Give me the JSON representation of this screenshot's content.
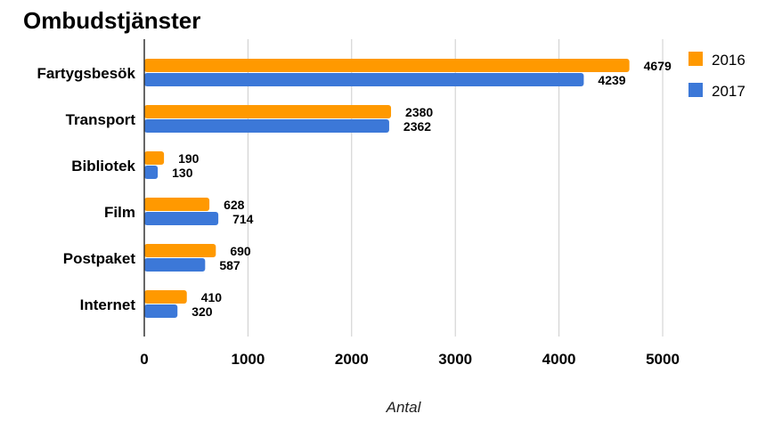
{
  "chart_data": {
    "type": "bar",
    "orientation": "horizontal",
    "title": "Ombudstjänster",
    "xlabel": "Antal",
    "ylabel": "",
    "categories": [
      "Fartygsbesök",
      "Transport",
      "Bibliotek",
      "Film",
      "Postpaket",
      "Internet"
    ],
    "series": [
      {
        "name": "2016",
        "color": "#ff9900",
        "values": [
          4679,
          2380,
          190,
          628,
          690,
          410
        ]
      },
      {
        "name": "2017",
        "color": "#3c78d8",
        "values": [
          4239,
          2362,
          130,
          714,
          587,
          320
        ]
      }
    ],
    "xlim": [
      0,
      5000
    ],
    "xticks": [
      0,
      1000,
      2000,
      3000,
      4000,
      5000
    ],
    "grid": true,
    "legend_position": "top-right",
    "data_labels": true
  }
}
